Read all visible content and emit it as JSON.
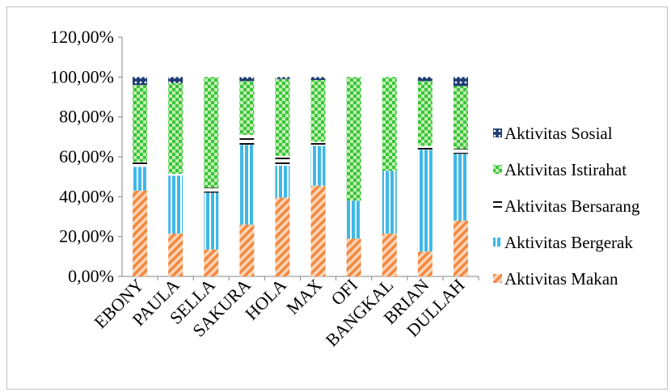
{
  "chart_data": {
    "type": "bar",
    "stacked": true,
    "title": "",
    "xlabel": "",
    "ylabel": "",
    "ylim": [
      0,
      120
    ],
    "y_tick_labels": [
      "0,00%",
      "20,00%",
      "40,00%",
      "60,00%",
      "80,00%",
      "100,00%",
      "120,00%"
    ],
    "grid": false,
    "legend_position": "right",
    "categories": [
      "EBONY",
      "PAULA",
      "SELLA",
      "SAKURA",
      "HOLA",
      "MAX",
      "OFI",
      "BANGKAL",
      "BRIAN",
      "DULLAH"
    ],
    "series": [
      {
        "name": "Aktivitas Makan",
        "color": "#f4a26b",
        "pattern": "diagonal-hatch",
        "values": [
          43,
          21.5,
          13.5,
          26,
          39.5,
          45.5,
          19,
          21.5,
          12.5,
          28
        ]
      },
      {
        "name": "Aktivitas Bergerak",
        "color": "#3fb8e8",
        "pattern": "vertical-stripes",
        "values": [
          12,
          29,
          28.5,
          40,
          16,
          20,
          19,
          31.5,
          51,
          33.5
        ]
      },
      {
        "name": "Aktivitas Bersarang",
        "color": "#000000",
        "pattern": "horizontal-lines",
        "values": [
          2.5,
          1,
          2.5,
          5,
          5,
          2,
          0,
          0,
          2,
          2.5
        ]
      },
      {
        "name": "Aktivitas Istirahat",
        "color": "#4fd04f",
        "pattern": "checker",
        "values": [
          38.5,
          45.5,
          55.5,
          27,
          38.5,
          31,
          62,
          47,
          32.5,
          31.5
        ]
      },
      {
        "name": "Aktivitas Sosial",
        "color": "#1f3b73",
        "pattern": "dotted",
        "values": [
          4,
          3,
          0,
          2,
          1,
          1.5,
          0,
          0,
          2,
          4.5
        ]
      }
    ]
  }
}
